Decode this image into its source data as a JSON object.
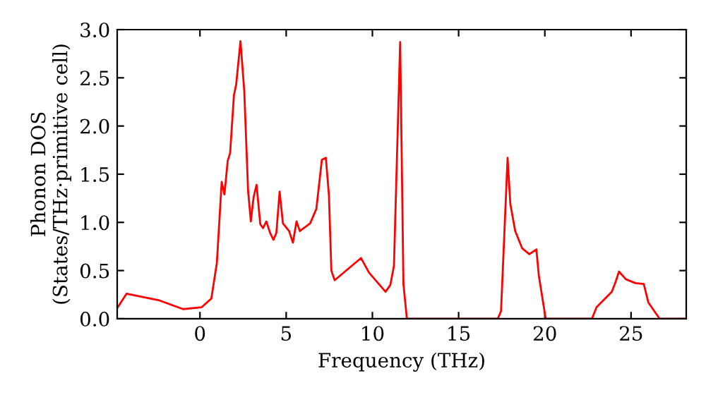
{
  "chart_data": {
    "type": "line",
    "xlabel": "Frequency (THz)",
    "ylabel": "Phonon DOS\n(States/THz·primitive cell)",
    "x": [
      -4.8,
      -4.26,
      -2.35,
      -0.98,
      0.1,
      0.66,
      0.98,
      1.26,
      1.42,
      1.61,
      1.75,
      1.97,
      2.1,
      2.35,
      2.57,
      2.79,
      2.95,
      3.11,
      3.28,
      3.5,
      3.66,
      3.85,
      4.07,
      4.26,
      4.43,
      4.62,
      4.81,
      5.17,
      5.39,
      5.6,
      5.79,
      6.39,
      6.75,
      7.07,
      7.3,
      7.48,
      7.62,
      7.81,
      9.34,
      9.8,
      10.76,
      11.04,
      11.25,
      11.61,
      11.8,
      12.0,
      17.27,
      17.46,
      17.84,
      18.0,
      18.28,
      18.69,
      19.1,
      19.51,
      19.65,
      20.05,
      22.73,
      23.0,
      23.88,
      24.1,
      24.3,
      24.7,
      25.25,
      25.74,
      26.0,
      26.66,
      28.1
    ],
    "series": [
      {
        "color": "#ff0000",
        "values": [
          0.11,
          0.26,
          0.19,
          0.1,
          0.12,
          0.21,
          0.58,
          1.42,
          1.29,
          1.64,
          1.72,
          2.32,
          2.43,
          2.88,
          2.36,
          1.33,
          1.01,
          1.26,
          1.39,
          0.98,
          0.94,
          1.01,
          0.89,
          0.82,
          0.89,
          1.32,
          0.99,
          0.91,
          0.79,
          1.01,
          0.91,
          0.99,
          1.14,
          1.65,
          1.67,
          1.28,
          0.5,
          0.4,
          0.63,
          0.48,
          0.28,
          0.35,
          0.55,
          2.87,
          0.36,
          0.0,
          0.0,
          0.08,
          1.67,
          1.19,
          0.91,
          0.73,
          0.67,
          0.72,
          0.45,
          0.0,
          0.0,
          0.12,
          0.28,
          0.38,
          0.49,
          0.41,
          0.37,
          0.36,
          0.17,
          0.0,
          0.0
        ]
      }
    ],
    "xlim": [
      -4.8,
      28.2
    ],
    "ylim": [
      0,
      3.0
    ],
    "xticks": [
      0,
      5,
      10,
      15,
      20,
      25
    ],
    "yticks": [
      {
        "value": 0,
        "label": "0.0"
      },
      {
        "value": 0.5,
        "label": "0.5"
      },
      {
        "value": 1.0,
        "label": "1.0"
      },
      {
        "value": 1.5,
        "label": "1.5"
      },
      {
        "value": 2.0,
        "label": "2.0"
      },
      {
        "value": 2.5,
        "label": "2.5"
      },
      {
        "value": 3.0,
        "label": "3.0"
      }
    ],
    "grid": false,
    "line_style": "solid",
    "marker": "none"
  }
}
